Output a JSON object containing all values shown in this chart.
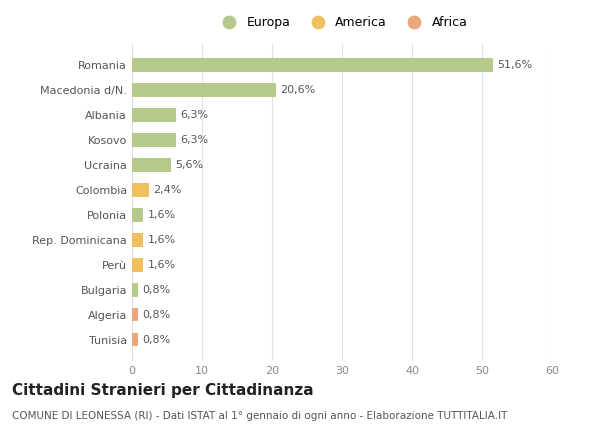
{
  "categories": [
    "Tunisia",
    "Algeria",
    "Bulgaria",
    "Perù",
    "Rep. Dominicana",
    "Polonia",
    "Colombia",
    "Ucraina",
    "Kosovo",
    "Albania",
    "Macedonia d/N.",
    "Romania"
  ],
  "values": [
    0.8,
    0.8,
    0.8,
    1.6,
    1.6,
    1.6,
    2.4,
    5.6,
    6.3,
    6.3,
    20.6,
    51.6
  ],
  "colors": [
    "#e8a87c",
    "#e8a87c",
    "#b5c98a",
    "#f0c060",
    "#f0c060",
    "#b5c98a",
    "#f0c060",
    "#b5c98a",
    "#b5c98a",
    "#b5c98a",
    "#b5c98a",
    "#b5c98a"
  ],
  "labels": [
    "0,8%",
    "0,8%",
    "0,8%",
    "1,6%",
    "1,6%",
    "1,6%",
    "2,4%",
    "5,6%",
    "6,3%",
    "6,3%",
    "20,6%",
    "51,6%"
  ],
  "legend": [
    {
      "label": "Europa",
      "color": "#b5c98a"
    },
    {
      "label": "America",
      "color": "#f0c060"
    },
    {
      "label": "Africa",
      "color": "#e8a87c"
    }
  ],
  "title": "Cittadini Stranieri per Cittadinanza",
  "subtitle": "COMUNE DI LEONESSA (RI) - Dati ISTAT al 1° gennaio di ogni anno - Elaborazione TUTTITALIA.IT",
  "xlim": [
    0,
    60
  ],
  "xticks": [
    0,
    10,
    20,
    30,
    40,
    50,
    60
  ],
  "background_color": "#ffffff",
  "bar_height": 0.55,
  "grid_color": "#e0e0e0",
  "title_fontsize": 11,
  "subtitle_fontsize": 7.5,
  "label_fontsize": 8,
  "tick_fontsize": 8,
  "legend_fontsize": 9
}
